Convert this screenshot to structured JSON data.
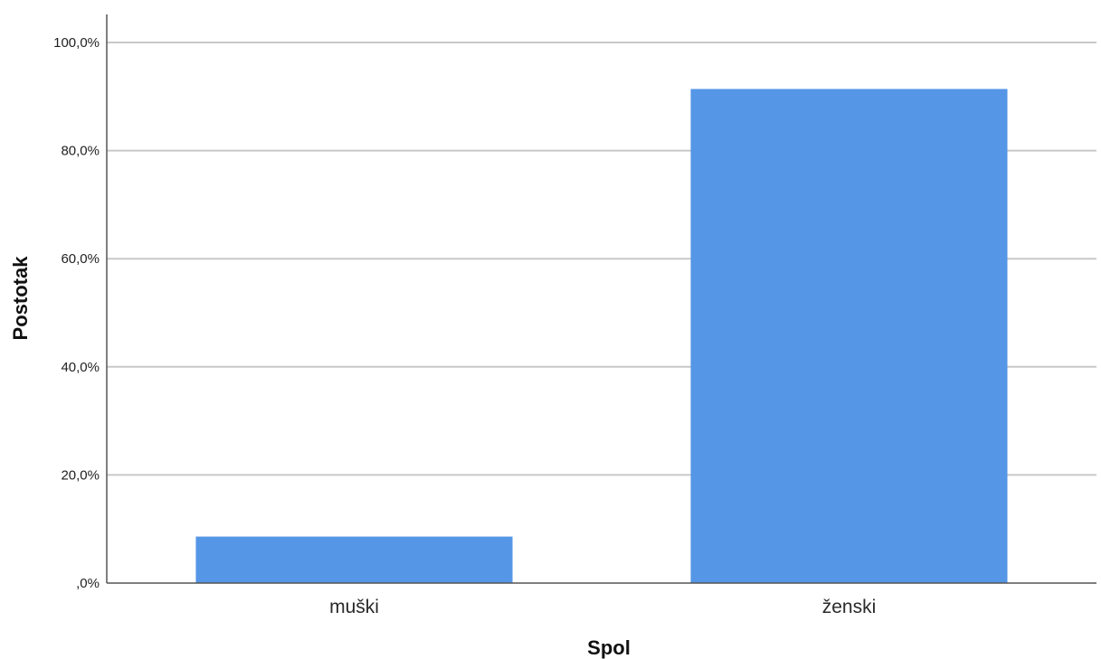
{
  "chart_data": {
    "type": "bar",
    "categories": [
      "muški",
      "ženski"
    ],
    "values": [
      8.6,
      91.4
    ],
    "xlabel": "Spol",
    "ylabel": "Postotak",
    "ylim": [
      0,
      100
    ],
    "yticks": [
      0,
      20,
      40,
      60,
      80,
      100
    ],
    "ytick_labels": [
      ",0%",
      "20,0%",
      "40,0%",
      "60,0%",
      "80,0%",
      "100,0%"
    ],
    "grid": true,
    "bar_color": "#5596e6"
  }
}
